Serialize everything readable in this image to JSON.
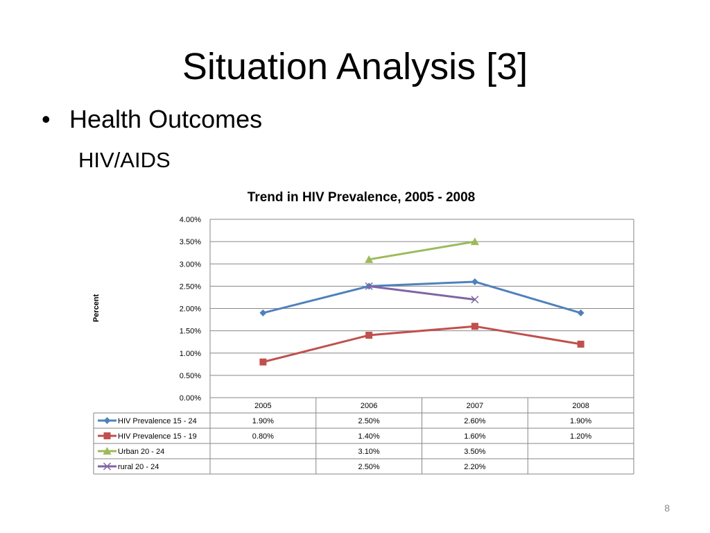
{
  "slide": {
    "title": "Situation Analysis [3]",
    "bullet": "Health Outcomes",
    "subheading": "HIV/AIDS",
    "page_number": "8"
  },
  "chart_data": {
    "type": "line",
    "title": "Trend in HIV Prevalence, 2005 - 2008",
    "xlabel": "",
    "ylabel": "Percent",
    "categories": [
      "2005",
      "2006",
      "2007",
      "2008"
    ],
    "ylim": [
      0,
      4
    ],
    "yticks": [
      "0.00%",
      "0.50%",
      "1.00%",
      "1.50%",
      "2.00%",
      "2.50%",
      "3.00%",
      "3.50%",
      "4.00%"
    ],
    "grid": true,
    "legend_placement": "data-table-left",
    "series": [
      {
        "name": "HIV Prevalence 15 - 24",
        "color": "#4F81BD",
        "marker": "diamond",
        "values": [
          1.9,
          2.5,
          2.6,
          1.9
        ],
        "labels": [
          "1.90%",
          "2.50%",
          "2.60%",
          "1.90%"
        ]
      },
      {
        "name": "HIV Prevalence 15 - 19",
        "color": "#C0504D",
        "marker": "square",
        "values": [
          0.8,
          1.4,
          1.6,
          1.2
        ],
        "labels": [
          "0.80%",
          "1.40%",
          "1.60%",
          "1.20%"
        ]
      },
      {
        "name": "Urban 20 - 24",
        "color": "#9BBB59",
        "marker": "triangle",
        "values": [
          null,
          3.1,
          3.5,
          null
        ],
        "labels": [
          "",
          "3.10%",
          "3.50%",
          ""
        ]
      },
      {
        "name": "rural 20 - 24",
        "color": "#8064A2",
        "marker": "x",
        "values": [
          null,
          2.5,
          2.2,
          null
        ],
        "labels": [
          "",
          "2.50%",
          "2.20%",
          ""
        ]
      }
    ]
  }
}
